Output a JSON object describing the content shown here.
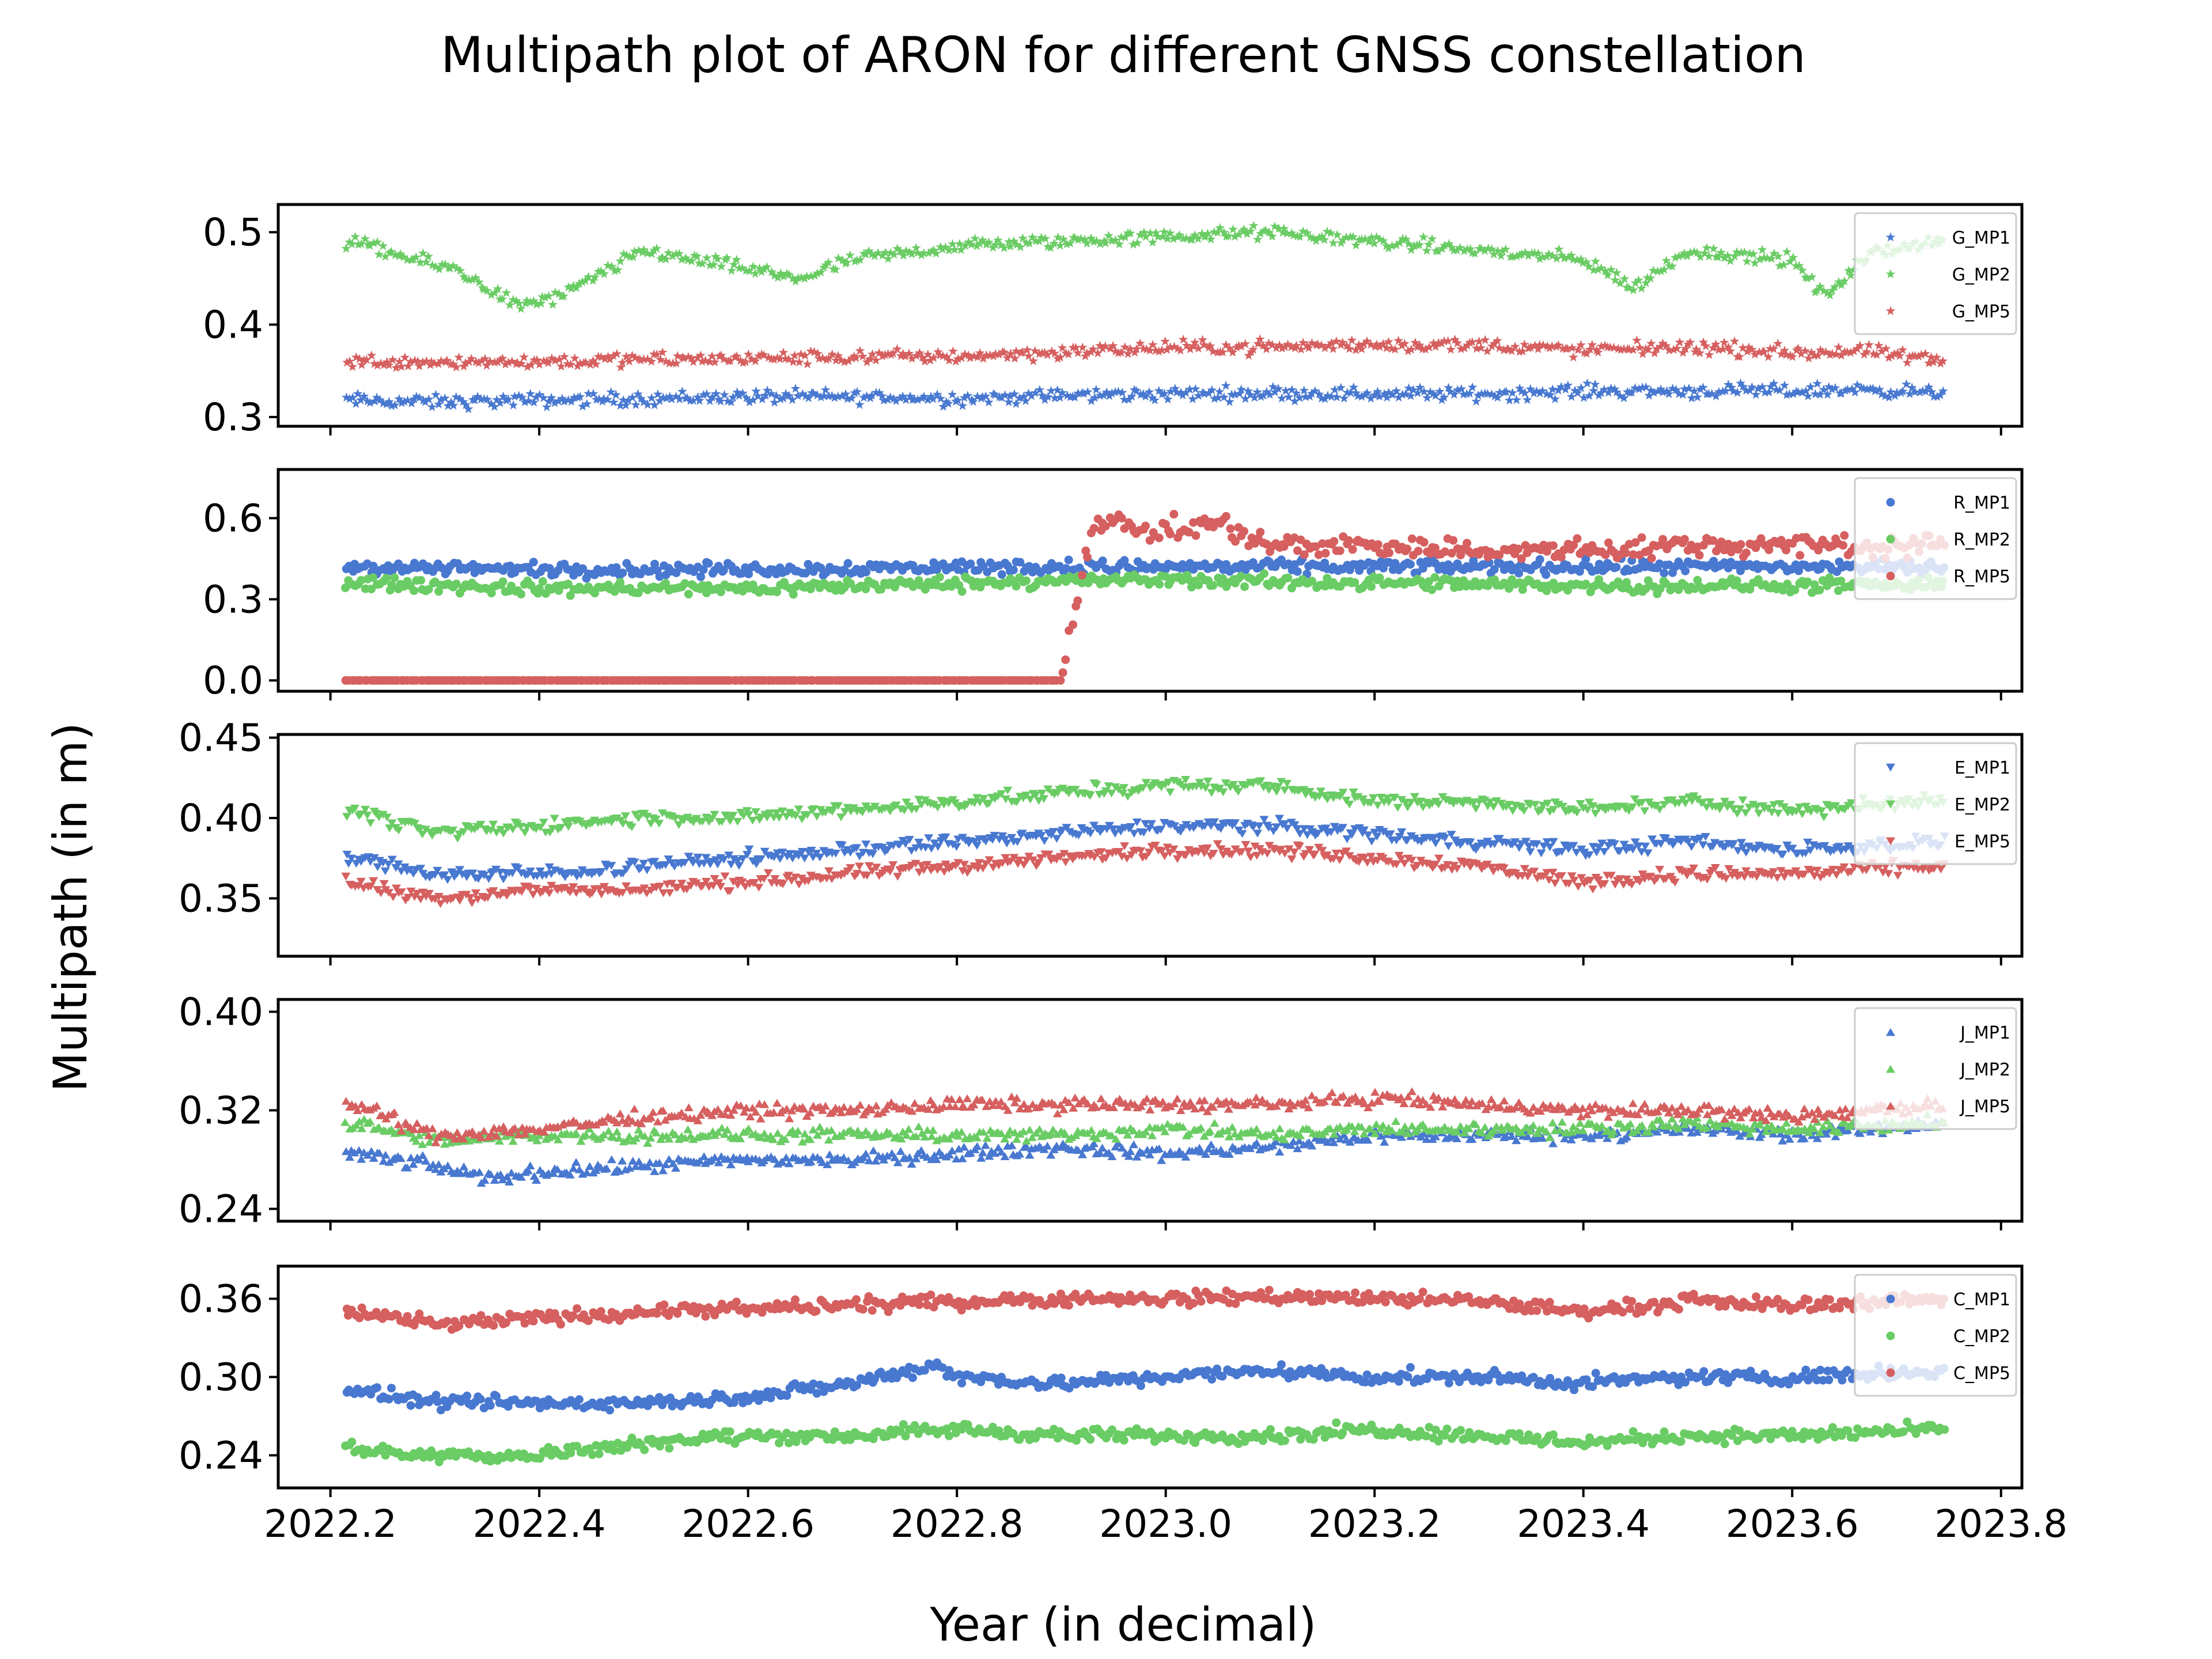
{
  "chart_data": {
    "type": "scatter",
    "title": "Multipath plot of ARON for different GNSS constellation",
    "xlabel": "Year (in decimal)",
    "ylabel": "Multipath (in m)",
    "xlim": [
      2022.15,
      2023.82
    ],
    "x_ticks": [
      2022.2,
      2022.4,
      2022.6,
      2022.8,
      2023.0,
      2023.2,
      2023.4,
      2023.6,
      2023.8
    ],
    "x_tick_labels": [
      "2022.2",
      "2022.4",
      "2022.6",
      "2022.8",
      "2023.0",
      "2023.2",
      "2023.4",
      "2023.6",
      "2023.8"
    ],
    "x_range_of_data": [
      2022.215,
      2023.745
    ],
    "grid": false,
    "legend_placement": "upper-right",
    "series_colors": [
      "#4878d0",
      "#6acc64",
      "#d65f5f"
    ],
    "panels": [
      {
        "marker": "star",
        "ylim": [
          0.29,
          0.53
        ],
        "y_ticks": [
          0.3,
          0.4,
          0.5
        ],
        "y_tick_labels": [
          "0.3",
          "0.4",
          "0.5"
        ],
        "series": [
          {
            "name": "G_MP1",
            "color": "#4878d0",
            "x": [
              2022.22,
              2022.3,
              2022.4,
              2022.5,
              2022.6,
              2022.7,
              2022.8,
              2022.9,
              2023.0,
              2023.1,
              2023.2,
              2023.3,
              2023.4,
              2023.5,
              2023.6,
              2023.68,
              2023.74
            ],
            "y": [
              0.318,
              0.316,
              0.318,
              0.32,
              0.322,
              0.322,
              0.32,
              0.323,
              0.325,
              0.326,
              0.325,
              0.325,
              0.328,
              0.328,
              0.328,
              0.33,
              0.325
            ]
          },
          {
            "name": "G_MP2",
            "color": "#6acc64",
            "x": [
              2022.22,
              2022.28,
              2022.32,
              2022.38,
              2022.42,
              2022.5,
              2022.55,
              2022.6,
              2022.65,
              2022.7,
              2022.8,
              2022.9,
              2023.0,
              2023.1,
              2023.2,
              2023.3,
              2023.4,
              2023.45,
              2023.5,
              2023.6,
              2023.63,
              2023.68,
              2023.74
            ],
            "y": [
              0.49,
              0.47,
              0.46,
              0.42,
              0.43,
              0.48,
              0.47,
              0.46,
              0.45,
              0.47,
              0.485,
              0.49,
              0.495,
              0.5,
              0.49,
              0.48,
              0.47,
              0.44,
              0.48,
              0.47,
              0.43,
              0.48,
              0.49
            ]
          },
          {
            "name": "G_MP5",
            "color": "#d65f5f",
            "x": [
              2022.22,
              2022.3,
              2022.4,
              2022.5,
              2022.6,
              2022.7,
              2022.8,
              2022.9,
              2023.0,
              2023.1,
              2023.2,
              2023.3,
              2023.4,
              2023.5,
              2023.6,
              2023.68,
              2023.74
            ],
            "y": [
              0.36,
              0.36,
              0.36,
              0.362,
              0.363,
              0.365,
              0.366,
              0.37,
              0.375,
              0.376,
              0.378,
              0.378,
              0.372,
              0.376,
              0.37,
              0.37,
              0.36
            ]
          }
        ]
      },
      {
        "marker": "circle",
        "ylim": [
          -0.04,
          0.78
        ],
        "y_ticks": [
          0.0,
          0.3,
          0.6
        ],
        "y_tick_labels": [
          "0.0",
          "0.3",
          "0.6"
        ],
        "series": [
          {
            "name": "R_MP1",
            "color": "#4878d0",
            "x": [
              2022.22,
              2022.4,
              2022.6,
              2022.8,
              2022.9,
              2023.0,
              2023.2,
              2023.4,
              2023.6,
              2023.74
            ],
            "y": [
              0.42,
              0.41,
              0.41,
              0.42,
              0.42,
              0.42,
              0.42,
              0.42,
              0.42,
              0.42
            ]
          },
          {
            "name": "R_MP2",
            "color": "#6acc64",
            "x": [
              2022.22,
              2022.4,
              2022.6,
              2022.8,
              2022.9,
              2023.0,
              2023.2,
              2023.4,
              2023.6,
              2023.74
            ],
            "y": [
              0.36,
              0.34,
              0.34,
              0.36,
              0.37,
              0.37,
              0.36,
              0.35,
              0.35,
              0.35
            ]
          },
          {
            "name": "R_MP5",
            "color": "#d65f5f",
            "x": [
              2022.22,
              2022.4,
              2022.6,
              2022.8,
              2022.9,
              2022.93,
              2022.98,
              2023.05,
              2023.1,
              2023.2,
              2023.3,
              2023.4,
              2023.5,
              2023.6,
              2023.74
            ],
            "y": [
              0.0,
              0.0,
              0.0,
              0.0,
              0.0,
              0.6,
              0.55,
              0.58,
              0.5,
              0.5,
              0.48,
              0.48,
              0.5,
              0.5,
              0.5
            ]
          }
        ]
      },
      {
        "marker": "triangle-down",
        "ylim": [
          0.314,
          0.452
        ],
        "y_ticks": [
          0.35,
          0.4,
          0.45
        ],
        "y_tick_labels": [
          "0.35",
          "0.40",
          "0.45"
        ],
        "series": [
          {
            "name": "E_MP1",
            "color": "#4878d0",
            "x": [
              2022.22,
              2022.3,
              2022.4,
              2022.5,
              2022.6,
              2022.7,
              2022.8,
              2022.9,
              2023.0,
              2023.1,
              2023.2,
              2023.3,
              2023.4,
              2023.5,
              2023.6,
              2023.74
            ],
            "y": [
              0.375,
              0.365,
              0.365,
              0.37,
              0.375,
              0.38,
              0.385,
              0.39,
              0.395,
              0.395,
              0.39,
              0.385,
              0.38,
              0.385,
              0.38,
              0.385
            ]
          },
          {
            "name": "E_MP2",
            "color": "#6acc64",
            "x": [
              2022.22,
              2022.3,
              2022.4,
              2022.5,
              2022.6,
              2022.7,
              2022.8,
              2022.9,
              2023.0,
              2023.1,
              2023.2,
              2023.3,
              2023.4,
              2023.5,
              2023.6,
              2023.74
            ],
            "y": [
              0.405,
              0.39,
              0.395,
              0.4,
              0.4,
              0.405,
              0.41,
              0.415,
              0.42,
              0.42,
              0.41,
              0.41,
              0.405,
              0.41,
              0.405,
              0.41
            ]
          },
          {
            "name": "E_MP5",
            "color": "#d65f5f",
            "x": [
              2022.22,
              2022.3,
              2022.4,
              2022.5,
              2022.6,
              2022.7,
              2022.8,
              2022.9,
              2023.0,
              2023.1,
              2023.2,
              2023.3,
              2023.4,
              2023.5,
              2023.6,
              2023.74
            ],
            "y": [
              0.36,
              0.35,
              0.355,
              0.355,
              0.36,
              0.365,
              0.37,
              0.375,
              0.38,
              0.38,
              0.375,
              0.37,
              0.36,
              0.365,
              0.365,
              0.37
            ]
          }
        ]
      },
      {
        "marker": "triangle-up",
        "ylim": [
          0.23,
          0.41
        ],
        "y_ticks": [
          0.24,
          0.32,
          0.4
        ],
        "y_tick_labels": [
          "0.24",
          "0.32",
          "0.40"
        ],
        "series": [
          {
            "name": "J_MP1",
            "color": "#4878d0",
            "x": [
              2022.22,
              2022.3,
              2022.35,
              2022.4,
              2022.5,
              2022.6,
              2022.7,
              2022.8,
              2022.9,
              2023.0,
              2023.1,
              2023.2,
              2023.3,
              2023.4,
              2023.5,
              2023.6,
              2023.74
            ],
            "y": [
              0.285,
              0.275,
              0.265,
              0.27,
              0.275,
              0.28,
              0.28,
              0.285,
              0.29,
              0.285,
              0.29,
              0.3,
              0.3,
              0.3,
              0.305,
              0.3,
              0.31
            ]
          },
          {
            "name": "J_MP2",
            "color": "#6acc64",
            "x": [
              2022.22,
              2022.3,
              2022.4,
              2022.5,
              2022.6,
              2022.7,
              2022.8,
              2022.9,
              2023.0,
              2023.1,
              2023.2,
              2023.3,
              2023.4,
              2023.5,
              2023.6,
              2023.74
            ],
            "y": [
              0.31,
              0.295,
              0.3,
              0.3,
              0.3,
              0.3,
              0.3,
              0.3,
              0.305,
              0.3,
              0.305,
              0.305,
              0.305,
              0.31,
              0.305,
              0.31
            ]
          },
          {
            "name": "J_MP5",
            "color": "#d65f5f",
            "x": [
              2022.22,
              2022.3,
              2022.4,
              2022.5,
              2022.6,
              2022.7,
              2022.8,
              2022.9,
              2023.0,
              2023.1,
              2023.2,
              2023.3,
              2023.4,
              2023.5,
              2023.6,
              2023.74
            ],
            "y": [
              0.325,
              0.3,
              0.305,
              0.315,
              0.32,
              0.32,
              0.325,
              0.325,
              0.325,
              0.325,
              0.33,
              0.325,
              0.32,
              0.32,
              0.315,
              0.325
            ]
          }
        ]
      },
      {
        "marker": "circle",
        "ylim": [
          0.215,
          0.385
        ],
        "y_ticks": [
          0.24,
          0.3,
          0.36
        ],
        "y_tick_labels": [
          "0.24",
          "0.30",
          "0.36"
        ],
        "series": [
          {
            "name": "C_MP1",
            "color": "#4878d0",
            "x": [
              2022.22,
              2022.3,
              2022.4,
              2022.5,
              2022.6,
              2022.7,
              2022.78,
              2022.8,
              2022.9,
              2023.0,
              2023.1,
              2023.2,
              2023.3,
              2023.4,
              2023.5,
              2023.6,
              2023.74
            ],
            "y": [
              0.29,
              0.28,
              0.28,
              0.28,
              0.285,
              0.295,
              0.31,
              0.3,
              0.295,
              0.3,
              0.305,
              0.3,
              0.3,
              0.295,
              0.3,
              0.3,
              0.305
            ]
          },
          {
            "name": "C_MP2",
            "color": "#6acc64",
            "x": [
              2022.22,
              2022.3,
              2022.4,
              2022.5,
              2022.6,
              2022.7,
              2022.8,
              2022.9,
              2023.0,
              2023.1,
              2023.2,
              2023.3,
              2023.4,
              2023.5,
              2023.6,
              2023.74
            ],
            "y": [
              0.245,
              0.24,
              0.24,
              0.25,
              0.255,
              0.255,
              0.26,
              0.255,
              0.255,
              0.255,
              0.26,
              0.255,
              0.25,
              0.255,
              0.255,
              0.26
            ]
          },
          {
            "name": "C_MP5",
            "color": "#d65f5f",
            "x": [
              2022.22,
              2022.3,
              2022.4,
              2022.5,
              2022.6,
              2022.7,
              2022.8,
              2022.9,
              2023.0,
              2023.1,
              2023.2,
              2023.3,
              2023.4,
              2023.5,
              2023.6,
              2023.74
            ],
            "y": [
              0.35,
              0.34,
              0.345,
              0.35,
              0.352,
              0.355,
              0.358,
              0.36,
              0.36,
              0.362,
              0.36,
              0.358,
              0.35,
              0.358,
              0.355,
              0.36
            ]
          }
        ]
      }
    ]
  }
}
